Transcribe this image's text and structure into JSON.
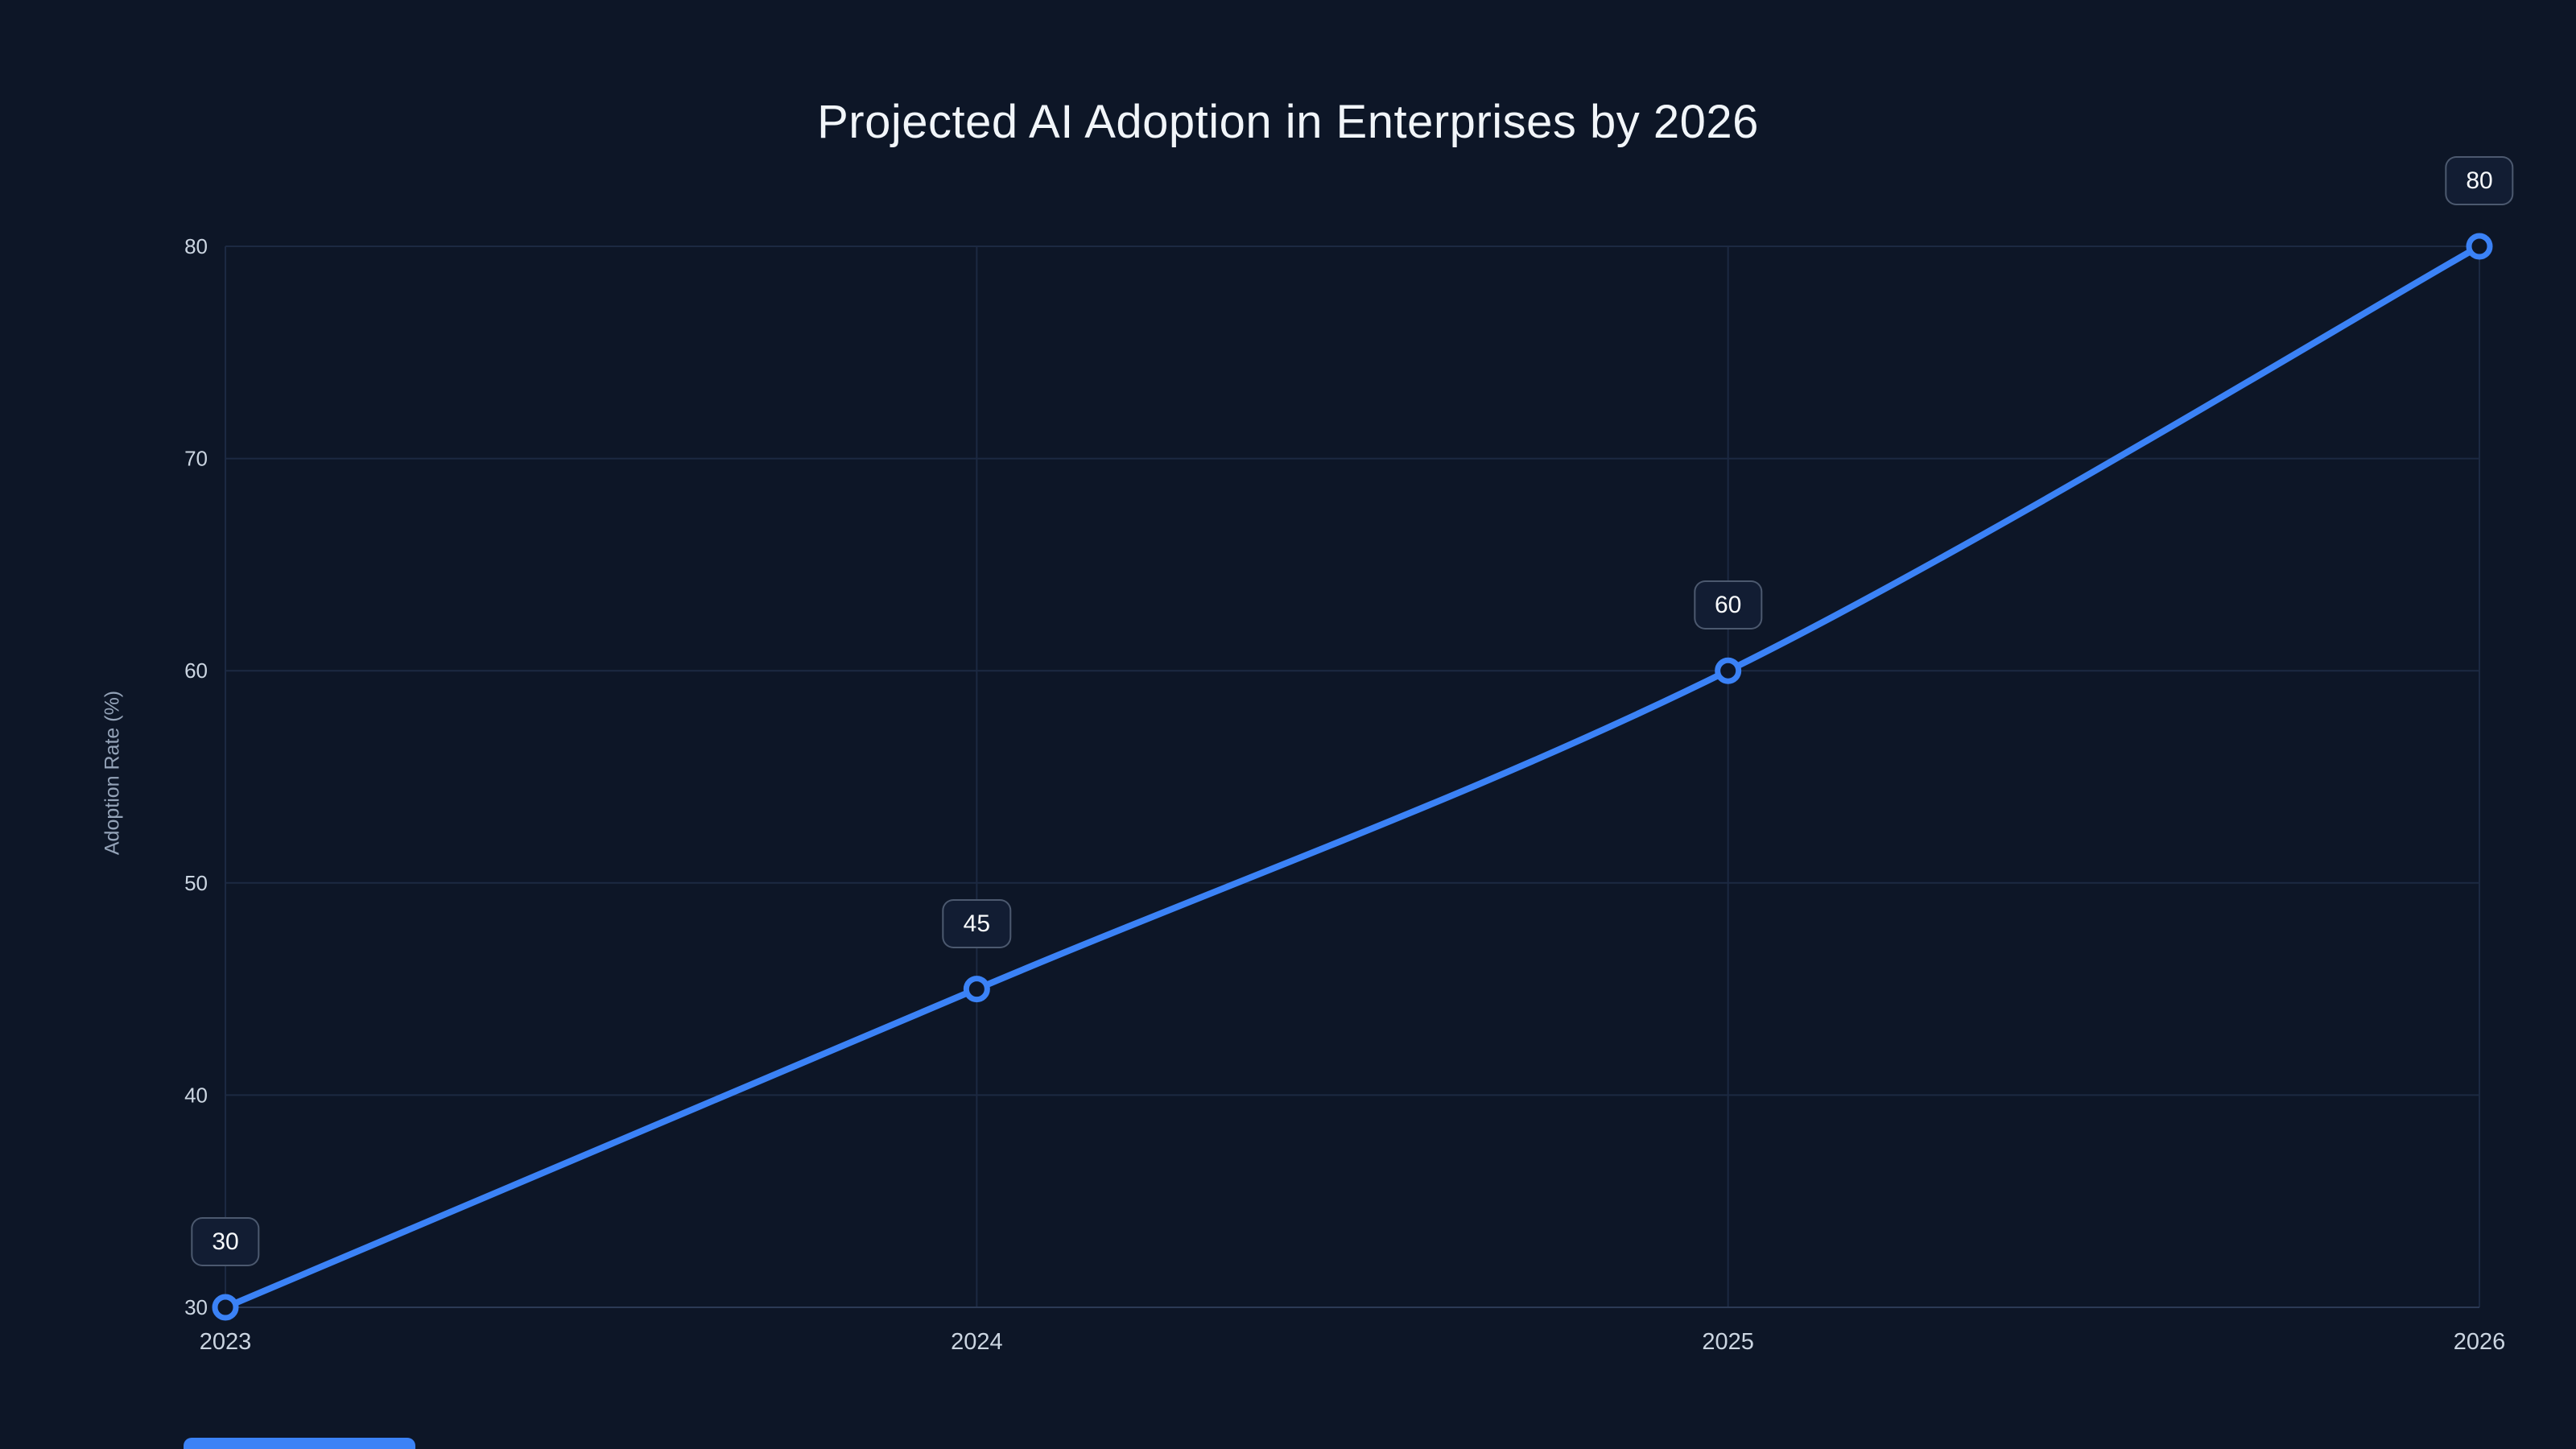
{
  "chart_data": {
    "type": "line",
    "title": "Projected AI Adoption in Enterprises by 2026",
    "xlabel": "",
    "ylabel": "Adoption Rate (%)",
    "categories": [
      "2023",
      "2024",
      "2025",
      "2026"
    ],
    "series": [
      {
        "name": "Adoption Rate (%)",
        "values": [
          30,
          45,
          60,
          80
        ]
      }
    ],
    "ylim": [
      30,
      80
    ],
    "yticks": [
      30,
      40,
      50,
      60,
      70,
      80
    ],
    "grid": true,
    "legend": "none",
    "point_labels_visible": true,
    "point_labels": [
      "30",
      "45",
      "60",
      "80"
    ]
  },
  "colors": {
    "background": "#0d1627",
    "line": "#3b82f6",
    "point_fill": "#0d1627",
    "grid": "#1c2942",
    "axis": "#2c3a55",
    "tick_text": "#cbd5e1",
    "title_text": "#f1f5f9",
    "label_bg": "#121d33",
    "label_border": "#64748b",
    "accent_bar": "#3b82f6"
  }
}
